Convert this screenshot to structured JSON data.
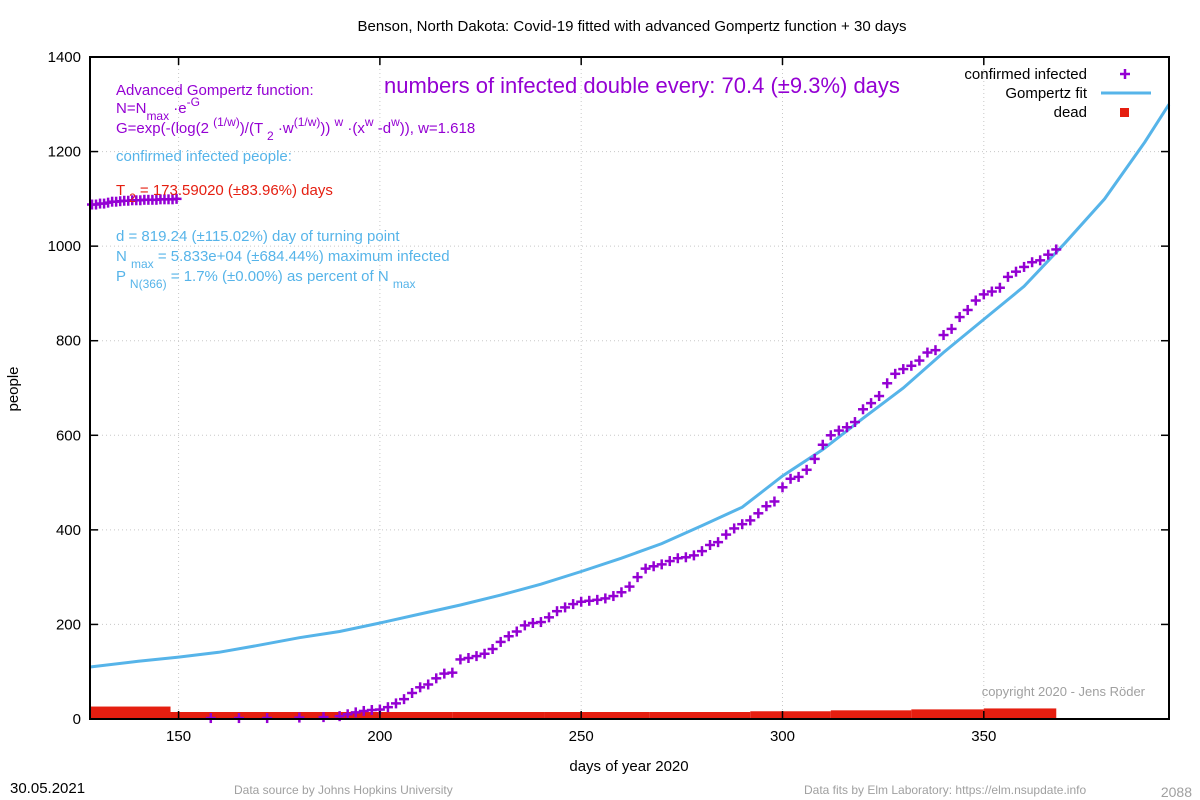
{
  "chart_data": {
    "type": "scatter",
    "title": "Benson,  North Dakota: Covid-19 fitted with advanced Gompertz function + 30 days",
    "xlabel": "days of year 2020",
    "ylabel": "people",
    "xlim": [
      128,
      396
    ],
    "ylim": [
      0,
      1400
    ],
    "x_ticks": [
      150,
      200,
      250,
      300,
      350
    ],
    "y_ticks": [
      0,
      200,
      400,
      600,
      800,
      1000,
      1200,
      1400
    ],
    "grid": "dotted",
    "legend_position": "top-right",
    "legend": [
      {
        "label": "confirmed infected",
        "color": "#9400d3",
        "marker": "plus"
      },
      {
        "label": "Gompertz fit",
        "color": "#56b4e9",
        "marker": "line"
      },
      {
        "label": "dead",
        "color": "#e51e10",
        "marker": "square"
      }
    ],
    "series": [
      {
        "name": "confirmed infected",
        "color": "#9400d3",
        "wrapped_points": {
          "x": [
            128,
            129,
            130,
            131,
            132,
            133,
            134,
            135,
            136,
            137,
            138,
            139,
            140,
            141,
            142,
            143,
            144,
            145,
            146,
            147,
            148,
            149
          ],
          "y": [
            1088,
            1088,
            1090,
            1090,
            1092,
            1094,
            1094,
            1095,
            1096,
            1096,
            1097,
            1097,
            1097,
            1098,
            1098,
            1098,
            1098,
            1099,
            1099,
            1099,
            1099,
            1100
          ]
        },
        "points": [
          {
            "x": 158,
            "y": 2
          },
          {
            "x": 165,
            "y": 2
          },
          {
            "x": 172,
            "y": 2
          },
          {
            "x": 180,
            "y": 3
          },
          {
            "x": 186,
            "y": 4
          },
          {
            "x": 190,
            "y": 6
          },
          {
            "x": 192,
            "y": 10
          },
          {
            "x": 194,
            "y": 14
          },
          {
            "x": 196,
            "y": 17
          },
          {
            "x": 198,
            "y": 19
          },
          {
            "x": 200,
            "y": 20
          },
          {
            "x": 202,
            "y": 25
          },
          {
            "x": 204,
            "y": 33
          },
          {
            "x": 206,
            "y": 42
          },
          {
            "x": 208,
            "y": 55
          },
          {
            "x": 210,
            "y": 67
          },
          {
            "x": 212,
            "y": 73
          },
          {
            "x": 214,
            "y": 86
          },
          {
            "x": 216,
            "y": 96
          },
          {
            "x": 218,
            "y": 98
          },
          {
            "x": 220,
            "y": 126
          },
          {
            "x": 222,
            "y": 129
          },
          {
            "x": 224,
            "y": 133
          },
          {
            "x": 226,
            "y": 138
          },
          {
            "x": 228,
            "y": 148
          },
          {
            "x": 230,
            "y": 163
          },
          {
            "x": 232,
            "y": 175
          },
          {
            "x": 234,
            "y": 185
          },
          {
            "x": 236,
            "y": 198
          },
          {
            "x": 238,
            "y": 203
          },
          {
            "x": 240,
            "y": 205
          },
          {
            "x": 242,
            "y": 215
          },
          {
            "x": 244,
            "y": 228
          },
          {
            "x": 246,
            "y": 236
          },
          {
            "x": 248,
            "y": 243
          },
          {
            "x": 250,
            "y": 248
          },
          {
            "x": 252,
            "y": 250
          },
          {
            "x": 254,
            "y": 252
          },
          {
            "x": 256,
            "y": 255
          },
          {
            "x": 258,
            "y": 260
          },
          {
            "x": 260,
            "y": 268
          },
          {
            "x": 262,
            "y": 280
          },
          {
            "x": 264,
            "y": 300
          },
          {
            "x": 266,
            "y": 318
          },
          {
            "x": 268,
            "y": 323
          },
          {
            "x": 270,
            "y": 327
          },
          {
            "x": 272,
            "y": 334
          },
          {
            "x": 274,
            "y": 340
          },
          {
            "x": 276,
            "y": 342
          },
          {
            "x": 278,
            "y": 346
          },
          {
            "x": 280,
            "y": 355
          },
          {
            "x": 282,
            "y": 368
          },
          {
            "x": 284,
            "y": 374
          },
          {
            "x": 286,
            "y": 390
          },
          {
            "x": 288,
            "y": 403
          },
          {
            "x": 290,
            "y": 412
          },
          {
            "x": 292,
            "y": 420
          },
          {
            "x": 294,
            "y": 435
          },
          {
            "x": 296,
            "y": 450
          },
          {
            "x": 298,
            "y": 460
          },
          {
            "x": 300,
            "y": 490
          },
          {
            "x": 302,
            "y": 508
          },
          {
            "x": 304,
            "y": 512
          },
          {
            "x": 306,
            "y": 527
          },
          {
            "x": 308,
            "y": 550
          },
          {
            "x": 310,
            "y": 580
          },
          {
            "x": 312,
            "y": 600
          },
          {
            "x": 314,
            "y": 610
          },
          {
            "x": 316,
            "y": 617
          },
          {
            "x": 318,
            "y": 628
          },
          {
            "x": 320,
            "y": 655
          },
          {
            "x": 322,
            "y": 668
          },
          {
            "x": 324,
            "y": 683
          },
          {
            "x": 326,
            "y": 710
          },
          {
            "x": 328,
            "y": 730
          },
          {
            "x": 330,
            "y": 740
          },
          {
            "x": 332,
            "y": 747
          },
          {
            "x": 334,
            "y": 758
          },
          {
            "x": 336,
            "y": 775
          },
          {
            "x": 338,
            "y": 780
          },
          {
            "x": 340,
            "y": 812
          },
          {
            "x": 342,
            "y": 825
          },
          {
            "x": 344,
            "y": 850
          },
          {
            "x": 346,
            "y": 865
          },
          {
            "x": 348,
            "y": 885
          },
          {
            "x": 350,
            "y": 898
          },
          {
            "x": 352,
            "y": 904
          },
          {
            "x": 354,
            "y": 912
          },
          {
            "x": 356,
            "y": 935
          },
          {
            "x": 358,
            "y": 946
          },
          {
            "x": 360,
            "y": 956
          },
          {
            "x": 362,
            "y": 966
          },
          {
            "x": 364,
            "y": 970
          },
          {
            "x": 366,
            "y": 982
          },
          {
            "x": 368,
            "y": 993
          }
        ]
      },
      {
        "name": "Gompertz fit",
        "color": "#56b4e9",
        "points": [
          {
            "x": 128,
            "y": 110
          },
          {
            "x": 140,
            "y": 122
          },
          {
            "x": 150,
            "y": 131
          },
          {
            "x": 160,
            "y": 141
          },
          {
            "x": 170,
            "y": 156
          },
          {
            "x": 180,
            "y": 172
          },
          {
            "x": 190,
            "y": 185
          },
          {
            "x": 200,
            "y": 203
          },
          {
            "x": 210,
            "y": 222
          },
          {
            "x": 220,
            "y": 241
          },
          {
            "x": 230,
            "y": 262
          },
          {
            "x": 240,
            "y": 285
          },
          {
            "x": 250,
            "y": 312
          },
          {
            "x": 260,
            "y": 340
          },
          {
            "x": 270,
            "y": 371
          },
          {
            "x": 280,
            "y": 409
          },
          {
            "x": 290,
            "y": 448
          },
          {
            "x": 300,
            "y": 514
          },
          {
            "x": 310,
            "y": 570
          },
          {
            "x": 320,
            "y": 636
          },
          {
            "x": 330,
            "y": 700
          },
          {
            "x": 340,
            "y": 775
          },
          {
            "x": 350,
            "y": 845
          },
          {
            "x": 360,
            "y": 915
          },
          {
            "x": 370,
            "y": 1005
          },
          {
            "x": 380,
            "y": 1100
          },
          {
            "x": 390,
            "y": 1220
          },
          {
            "x": 396,
            "y": 1300
          }
        ]
      },
      {
        "name": "dead",
        "color": "#e51e10",
        "segments": [
          {
            "from": 128,
            "to": 148,
            "y": 20
          },
          {
            "from": 148,
            "to": 218,
            "y": 2
          },
          {
            "from": 218,
            "to": 241,
            "y": 4
          },
          {
            "from": 241,
            "to": 267,
            "y": 6
          },
          {
            "from": 267,
            "to": 292,
            "y": 8
          },
          {
            "from": 292,
            "to": 312,
            "y": 10
          },
          {
            "from": 312,
            "to": 332,
            "y": 12
          },
          {
            "from": 332,
            "to": 350,
            "y": 14
          },
          {
            "from": 350,
            "to": 368,
            "y": 16
          }
        ]
      }
    ]
  },
  "annotations": {
    "formula_title": "Advanced Gompertz function:",
    "formula_line2": {
      "a": "N=N",
      "sub": "max",
      "b": " ·e",
      "sup": "-G"
    },
    "formula_line3": {
      "a": " G=exp(-(log(2 ",
      "sup1": "(1/w)",
      "b": ")/(T ",
      "sub1": "2",
      "c": " ·w",
      "sup2": "(1/w)",
      "d": ")) ",
      "sup3": "w",
      "e": " ·(x",
      "sup4": "w",
      "f": " -d",
      "sup5": "w",
      "g": ")), w=1.618"
    },
    "confirmed_heading": "confirmed infected people:",
    "t2": {
      "a": "T ",
      "sub": "2",
      "b": " = 173.59020 (±83.96%) days"
    },
    "doubling": "numbers of infected double every: 70.4 (±9.3%) days",
    "turning_point": "d = 819.24 (±115.02%) day of turning point",
    "nmax": {
      "a": "N ",
      "sub": "max",
      "b": " = 5.833e+04 (±684.44%) maximum infected"
    },
    "pn": {
      "a": "P ",
      "sub1": "N(366)",
      "b": " = 1.7% (±0.00%) as percent of N ",
      "sub2": "max"
    },
    "copyright": "copyright 2020 - Jens Röder"
  },
  "footer": {
    "date": "30.05.2021",
    "source": "Data source by Johns Hopkins University",
    "fits": "Data fits by Elm Laboratory: https://elm.nsupdate.info",
    "number": "2088"
  }
}
